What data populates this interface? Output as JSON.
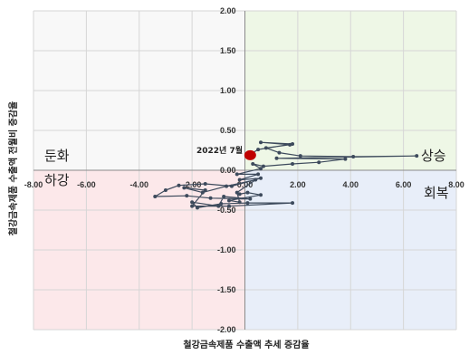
{
  "chart_data": {
    "type": "scatter",
    "xlabel": "철강금속제품 수출액 추세 증감율",
    "ylabel": "철강금속제품 수출액 전월비 증감율",
    "xlim": [
      -8,
      8
    ],
    "ylim": [
      -2,
      2
    ],
    "x_ticks": [
      "-8.00",
      "-6.00",
      "-4.00",
      "-2.00",
      "0.00",
      "2.00",
      "4.00",
      "6.00",
      "8.00"
    ],
    "y_ticks": [
      "2.00",
      "1.50",
      "1.00",
      "0.50",
      "0.00",
      "-0.50",
      "-1.00",
      "-1.50",
      "-2.00"
    ],
    "grid": true,
    "quadrants": {
      "upper_left": {
        "label": "둔화",
        "color": "#f8f8f8"
      },
      "upper_right": {
        "label": "상승",
        "color": "#eef7e6"
      },
      "lower_left": {
        "label": "하강",
        "color": "#fce8ea"
      },
      "lower_right": {
        "label": "회복",
        "color": "#e8eef9"
      }
    },
    "annotation": "2022년 7월",
    "highlight_point": {
      "x": 0.2,
      "y": 0.2,
      "color": "#c00000"
    },
    "series": [
      {
        "color": "#3d4a5c",
        "points": [
          [
            0.2,
            0.2
          ],
          [
            0.5,
            0.26
          ],
          [
            1.8,
            0.33
          ],
          [
            0.6,
            0.35
          ],
          [
            1.7,
            0.32
          ],
          [
            0.8,
            0.28
          ],
          [
            1.3,
            0.22
          ],
          [
            2.1,
            0.18
          ],
          [
            4.1,
            0.17
          ],
          [
            6.5,
            0.18
          ],
          [
            1.2,
            0.15
          ],
          [
            3.8,
            0.14
          ],
          [
            2.8,
            0.1
          ],
          [
            1.8,
            0.08
          ],
          [
            0.7,
            0.05
          ],
          [
            0.3,
            0.08
          ],
          [
            0.6,
            0.02
          ],
          [
            -0.3,
            -0.05
          ],
          [
            0.5,
            -0.05
          ],
          [
            -0.2,
            -0.12
          ],
          [
            0.6,
            -0.1
          ],
          [
            -0.5,
            -0.2
          ],
          [
            -1.5,
            -0.17
          ],
          [
            -2.5,
            -0.19
          ],
          [
            -3.0,
            -0.25
          ],
          [
            -3.4,
            -0.33
          ],
          [
            -2.2,
            -0.32
          ],
          [
            -1.3,
            -0.35
          ],
          [
            0.2,
            -0.36
          ],
          [
            -0.8,
            -0.33
          ],
          [
            -1.0,
            -0.45
          ],
          [
            -2.0,
            -0.4
          ],
          [
            -1.8,
            -0.47
          ],
          [
            -0.9,
            -0.42
          ],
          [
            0.1,
            -0.41
          ],
          [
            1.8,
            -0.41
          ],
          [
            -0.6,
            -0.45
          ],
          [
            -2.0,
            -0.45
          ],
          [
            -1.5,
            -0.25
          ],
          [
            -2.3,
            -0.22
          ],
          [
            -1.6,
            -0.28
          ],
          [
            -0.7,
            -0.2
          ],
          [
            0.4,
            -0.12
          ],
          [
            -0.3,
            -0.28
          ],
          [
            -0.2,
            -0.4
          ],
          [
            -0.6,
            -0.38
          ],
          [
            0.6,
            -0.31
          ],
          [
            0.1,
            -0.28
          ],
          [
            -0.2,
            -0.3
          ]
        ]
      }
    ]
  }
}
